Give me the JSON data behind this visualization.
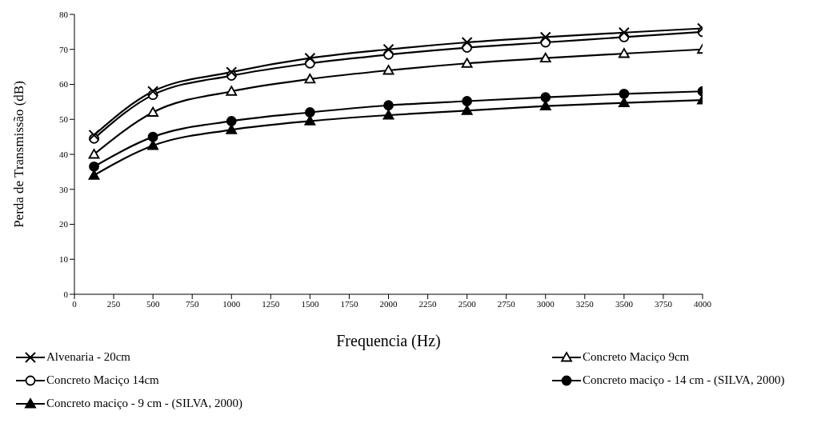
{
  "chart_data": {
    "type": "line",
    "xlabel": "Frequencia (Hz)",
    "ylabel": "Perda de Transmissão (dB)",
    "x": [
      125,
      500,
      1000,
      1500,
      2000,
      2500,
      3000,
      3500,
      4000
    ],
    "xlim": [
      0,
      4000
    ],
    "xticks": [
      0,
      250,
      500,
      750,
      1000,
      1250,
      1500,
      1750,
      2000,
      2250,
      2500,
      2750,
      3000,
      3250,
      3500,
      3750,
      4000
    ],
    "ylim": [
      0,
      80
    ],
    "yticks": [
      0,
      10,
      20,
      30,
      40,
      50,
      60,
      70,
      80
    ],
    "grid": false,
    "legend": "bottom",
    "line_style": "solid",
    "series": [
      {
        "name": "Alvenaria - 20cm",
        "color": "#000000",
        "marker": "cross",
        "values": [
          45.5,
          58,
          63.5,
          67.5,
          70,
          72,
          73.5,
          74.8,
          76
        ]
      },
      {
        "name": "Concreto Maciço 9cm",
        "color": "#000000",
        "marker": "triangle",
        "values": [
          40,
          52,
          58,
          61.5,
          64,
          66,
          67.5,
          68.8,
          70
        ]
      },
      {
        "name": "Concreto Maciço 14cm",
        "color": "#000000",
        "marker": "circle",
        "values": [
          44.5,
          57,
          62.5,
          66,
          68.5,
          70.5,
          72,
          73.5,
          75
        ]
      },
      {
        "name": "Concreto maciço - 14 cm - (SILVA, 2000)",
        "color": "#000000",
        "marker": "circle",
        "values": [
          36.5,
          45,
          49.5,
          52,
          54,
          55.2,
          56.3,
          57.3,
          58
        ]
      },
      {
        "name": "Concreto maciço - 9 cm - (SILVA, 2000)",
        "color": "#000000",
        "marker": "triangle",
        "values": [
          34,
          42.5,
          47,
          49.5,
          51.2,
          52.5,
          53.8,
          54.7,
          55.5
        ]
      }
    ]
  }
}
